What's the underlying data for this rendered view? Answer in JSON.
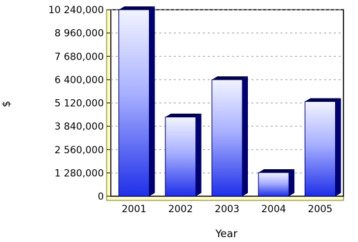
{
  "chart_data": {
    "type": "bar",
    "categories": [
      "2001",
      "2002",
      "2003",
      "2004",
      "2005"
    ],
    "values": [
      10240000,
      4350000,
      6400000,
      1300000,
      5200000
    ],
    "y_ticks": [
      "0",
      "1 280,000",
      "2 560,000",
      "3 840,000",
      "5 120,000",
      "6 400,000",
      "7 680,000",
      "8 960,000",
      "10 240,000"
    ],
    "ylim": [
      0,
      10240000
    ],
    "xlabel": "Year",
    "ylabel": "$",
    "grid": true,
    "colors": {
      "bar_top": "#f2f4ff",
      "bar_bottom": "#1e2fe8",
      "bar_side": "#00006e",
      "bar_cap": "#00004a",
      "plot_edge": "#7a7a00",
      "grid": "#9a9a9a",
      "axis": "#000000"
    }
  }
}
